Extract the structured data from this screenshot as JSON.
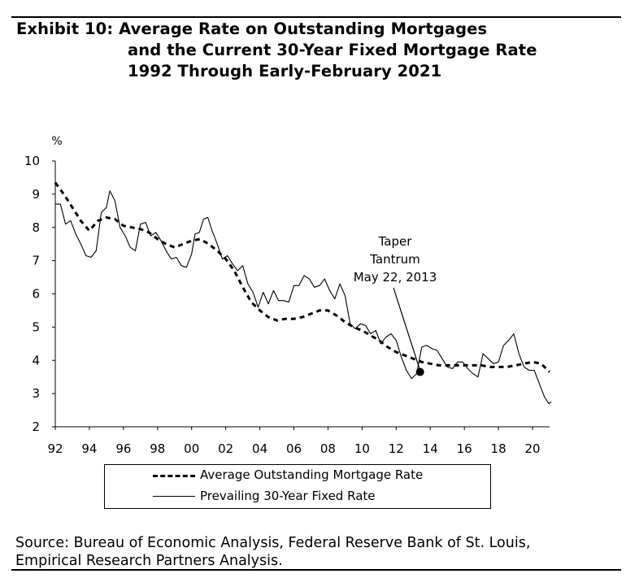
{
  "header": {
    "title_lines": [
      "Exhibit 10: Average Rate on Outstanding Mortgages",
      "and the Current 30-Year Fixed Mortgage Rate",
      "1992 Through Early-February 2021"
    ]
  },
  "source": {
    "lines": [
      "Source: Bureau of Economic Analysis, Federal Reserve Bank of St. Louis,",
      "Empirical Research Partners Analysis."
    ]
  },
  "chart_data": {
    "type": "line",
    "title": "Exhibit 10: Average Rate on Outstanding Mortgages and the Current 30-Year Fixed Mortgage Rate 1992 Through Early-February 2021",
    "ylabel": "%",
    "xlabel": "",
    "xlim": [
      1992,
      2021
    ],
    "ylim": [
      2,
      10
    ],
    "x_ticks": [
      1992,
      1994,
      1996,
      1998,
      2000,
      2002,
      2004,
      2006,
      2008,
      2010,
      2012,
      2014,
      2016,
      2018,
      2020
    ],
    "x_tick_labels": [
      "92",
      "94",
      "96",
      "98",
      "00",
      "02",
      "04",
      "06",
      "08",
      "10",
      "12",
      "14",
      "16",
      "18",
      "20"
    ],
    "y_ticks": [
      2,
      3,
      4,
      5,
      6,
      7,
      8,
      9,
      10
    ],
    "y_tick_labels": [
      "2",
      "3",
      "4",
      "5",
      "6",
      "7",
      "8",
      "9",
      "10"
    ],
    "grid": false,
    "legend_position": "bottom",
    "series": [
      {
        "name": "Average Outstanding Mortgage Rate",
        "style": "dashed",
        "color": "#000000",
        "points": [
          [
            1992.0,
            9.35
          ],
          [
            1992.5,
            9.0
          ],
          [
            1993.0,
            8.6
          ],
          [
            1993.5,
            8.2
          ],
          [
            1994.0,
            7.9
          ],
          [
            1994.5,
            8.2
          ],
          [
            1995.0,
            8.3
          ],
          [
            1995.5,
            8.25
          ],
          [
            1996.0,
            8.05
          ],
          [
            1996.5,
            8.0
          ],
          [
            1997.0,
            7.95
          ],
          [
            1997.5,
            7.85
          ],
          [
            1998.0,
            7.65
          ],
          [
            1998.5,
            7.5
          ],
          [
            1999.0,
            7.4
          ],
          [
            1999.5,
            7.5
          ],
          [
            2000.0,
            7.6
          ],
          [
            2000.5,
            7.65
          ],
          [
            2001.0,
            7.5
          ],
          [
            2001.5,
            7.3
          ],
          [
            2002.0,
            7.05
          ],
          [
            2002.5,
            6.7
          ],
          [
            2003.0,
            6.2
          ],
          [
            2003.5,
            5.75
          ],
          [
            2004.0,
            5.5
          ],
          [
            2004.5,
            5.3
          ],
          [
            2005.0,
            5.2
          ],
          [
            2005.5,
            5.25
          ],
          [
            2006.0,
            5.25
          ],
          [
            2006.5,
            5.3
          ],
          [
            2007.0,
            5.4
          ],
          [
            2007.5,
            5.5
          ],
          [
            2008.0,
            5.5
          ],
          [
            2008.5,
            5.35
          ],
          [
            2009.0,
            5.15
          ],
          [
            2009.5,
            5.0
          ],
          [
            2010.0,
            4.9
          ],
          [
            2010.5,
            4.75
          ],
          [
            2011.0,
            4.6
          ],
          [
            2011.5,
            4.4
          ],
          [
            2012.0,
            4.25
          ],
          [
            2012.5,
            4.15
          ],
          [
            2013.0,
            4.05
          ],
          [
            2013.5,
            3.95
          ],
          [
            2014.0,
            3.9
          ],
          [
            2014.5,
            3.85
          ],
          [
            2015.0,
            3.85
          ],
          [
            2015.5,
            3.85
          ],
          [
            2016.0,
            3.85
          ],
          [
            2016.5,
            3.85
          ],
          [
            2017.0,
            3.85
          ],
          [
            2017.5,
            3.8
          ],
          [
            2018.0,
            3.8
          ],
          [
            2018.5,
            3.8
          ],
          [
            2019.0,
            3.85
          ],
          [
            2019.5,
            3.9
          ],
          [
            2020.0,
            3.95
          ],
          [
            2020.5,
            3.9
          ],
          [
            2021.0,
            3.65
          ]
        ]
      },
      {
        "name": "Prevailing 30-Year Fixed Rate",
        "style": "solid",
        "color": "#000000",
        "points": [
          [
            1992.0,
            8.7
          ],
          [
            1992.3,
            8.7
          ],
          [
            1992.6,
            8.1
          ],
          [
            1992.9,
            8.2
          ],
          [
            1993.2,
            7.8
          ],
          [
            1993.5,
            7.5
          ],
          [
            1993.8,
            7.15
          ],
          [
            1994.1,
            7.1
          ],
          [
            1994.4,
            7.3
          ],
          [
            1994.7,
            8.45
          ],
          [
            1995.0,
            8.6
          ],
          [
            1995.2,
            9.1
          ],
          [
            1995.5,
            8.8
          ],
          [
            1995.8,
            8.0
          ],
          [
            1996.1,
            7.75
          ],
          [
            1996.4,
            7.4
          ],
          [
            1996.7,
            7.3
          ],
          [
            1997.0,
            8.1
          ],
          [
            1997.3,
            8.15
          ],
          [
            1997.6,
            7.75
          ],
          [
            1997.9,
            7.85
          ],
          [
            1998.2,
            7.6
          ],
          [
            1998.5,
            7.3
          ],
          [
            1998.8,
            7.05
          ],
          [
            1999.1,
            7.1
          ],
          [
            1999.4,
            6.85
          ],
          [
            1999.7,
            6.8
          ],
          [
            2000.0,
            7.2
          ],
          [
            2000.2,
            7.8
          ],
          [
            2000.45,
            7.85
          ],
          [
            2000.7,
            8.25
          ],
          [
            2000.95,
            8.3
          ],
          [
            2001.2,
            7.9
          ],
          [
            2001.5,
            7.5
          ],
          [
            2001.8,
            7.05
          ],
          [
            2002.1,
            7.15
          ],
          [
            2002.4,
            6.9
          ],
          [
            2002.7,
            6.7
          ],
          [
            2003.0,
            6.85
          ],
          [
            2003.3,
            6.3
          ],
          [
            2003.6,
            6.05
          ],
          [
            2003.9,
            5.6
          ],
          [
            2004.2,
            6.05
          ],
          [
            2004.5,
            5.7
          ],
          [
            2004.8,
            6.1
          ],
          [
            2005.1,
            5.8
          ],
          [
            2005.4,
            5.8
          ],
          [
            2005.7,
            5.75
          ],
          [
            2006.0,
            6.25
          ],
          [
            2006.3,
            6.25
          ],
          [
            2006.6,
            6.55
          ],
          [
            2006.9,
            6.45
          ],
          [
            2007.2,
            6.2
          ],
          [
            2007.5,
            6.25
          ],
          [
            2007.8,
            6.45
          ],
          [
            2008.1,
            6.1
          ],
          [
            2008.4,
            5.85
          ],
          [
            2008.7,
            6.3
          ],
          [
            2009.0,
            5.95
          ],
          [
            2009.3,
            5.1
          ],
          [
            2009.6,
            4.95
          ],
          [
            2009.9,
            5.1
          ],
          [
            2010.2,
            5.05
          ],
          [
            2010.5,
            4.8
          ],
          [
            2010.8,
            4.9
          ],
          [
            2011.1,
            4.5
          ],
          [
            2011.4,
            4.7
          ],
          [
            2011.7,
            4.8
          ],
          [
            2012.0,
            4.6
          ],
          [
            2012.3,
            4.1
          ],
          [
            2012.6,
            3.7
          ],
          [
            2012.9,
            3.45
          ],
          [
            2013.2,
            3.6
          ],
          [
            2013.5,
            4.4
          ],
          [
            2013.8,
            4.45
          ],
          [
            2014.1,
            4.35
          ],
          [
            2014.4,
            4.3
          ],
          [
            2014.7,
            4.05
          ],
          [
            2015.0,
            3.8
          ],
          [
            2015.3,
            3.75
          ],
          [
            2015.6,
            3.95
          ],
          [
            2015.9,
            3.95
          ],
          [
            2016.2,
            3.75
          ],
          [
            2016.5,
            3.6
          ],
          [
            2016.8,
            3.5
          ],
          [
            2017.1,
            4.2
          ],
          [
            2017.4,
            4.05
          ],
          [
            2017.7,
            3.9
          ],
          [
            2018.0,
            3.95
          ],
          [
            2018.3,
            4.45
          ],
          [
            2018.6,
            4.6
          ],
          [
            2018.9,
            4.8
          ],
          [
            2019.2,
            4.2
          ],
          [
            2019.5,
            3.8
          ],
          [
            2019.8,
            3.7
          ],
          [
            2020.1,
            3.7
          ],
          [
            2020.4,
            3.3
          ],
          [
            2020.7,
            2.9
          ],
          [
            2020.95,
            2.7
          ],
          [
            2021.1,
            2.75
          ]
        ]
      }
    ],
    "annotations": [
      {
        "lines": [
          "Taper",
          "Tantrum",
          "May 22, 2013"
        ],
        "point": [
          2013.4,
          3.65
        ]
      }
    ]
  }
}
